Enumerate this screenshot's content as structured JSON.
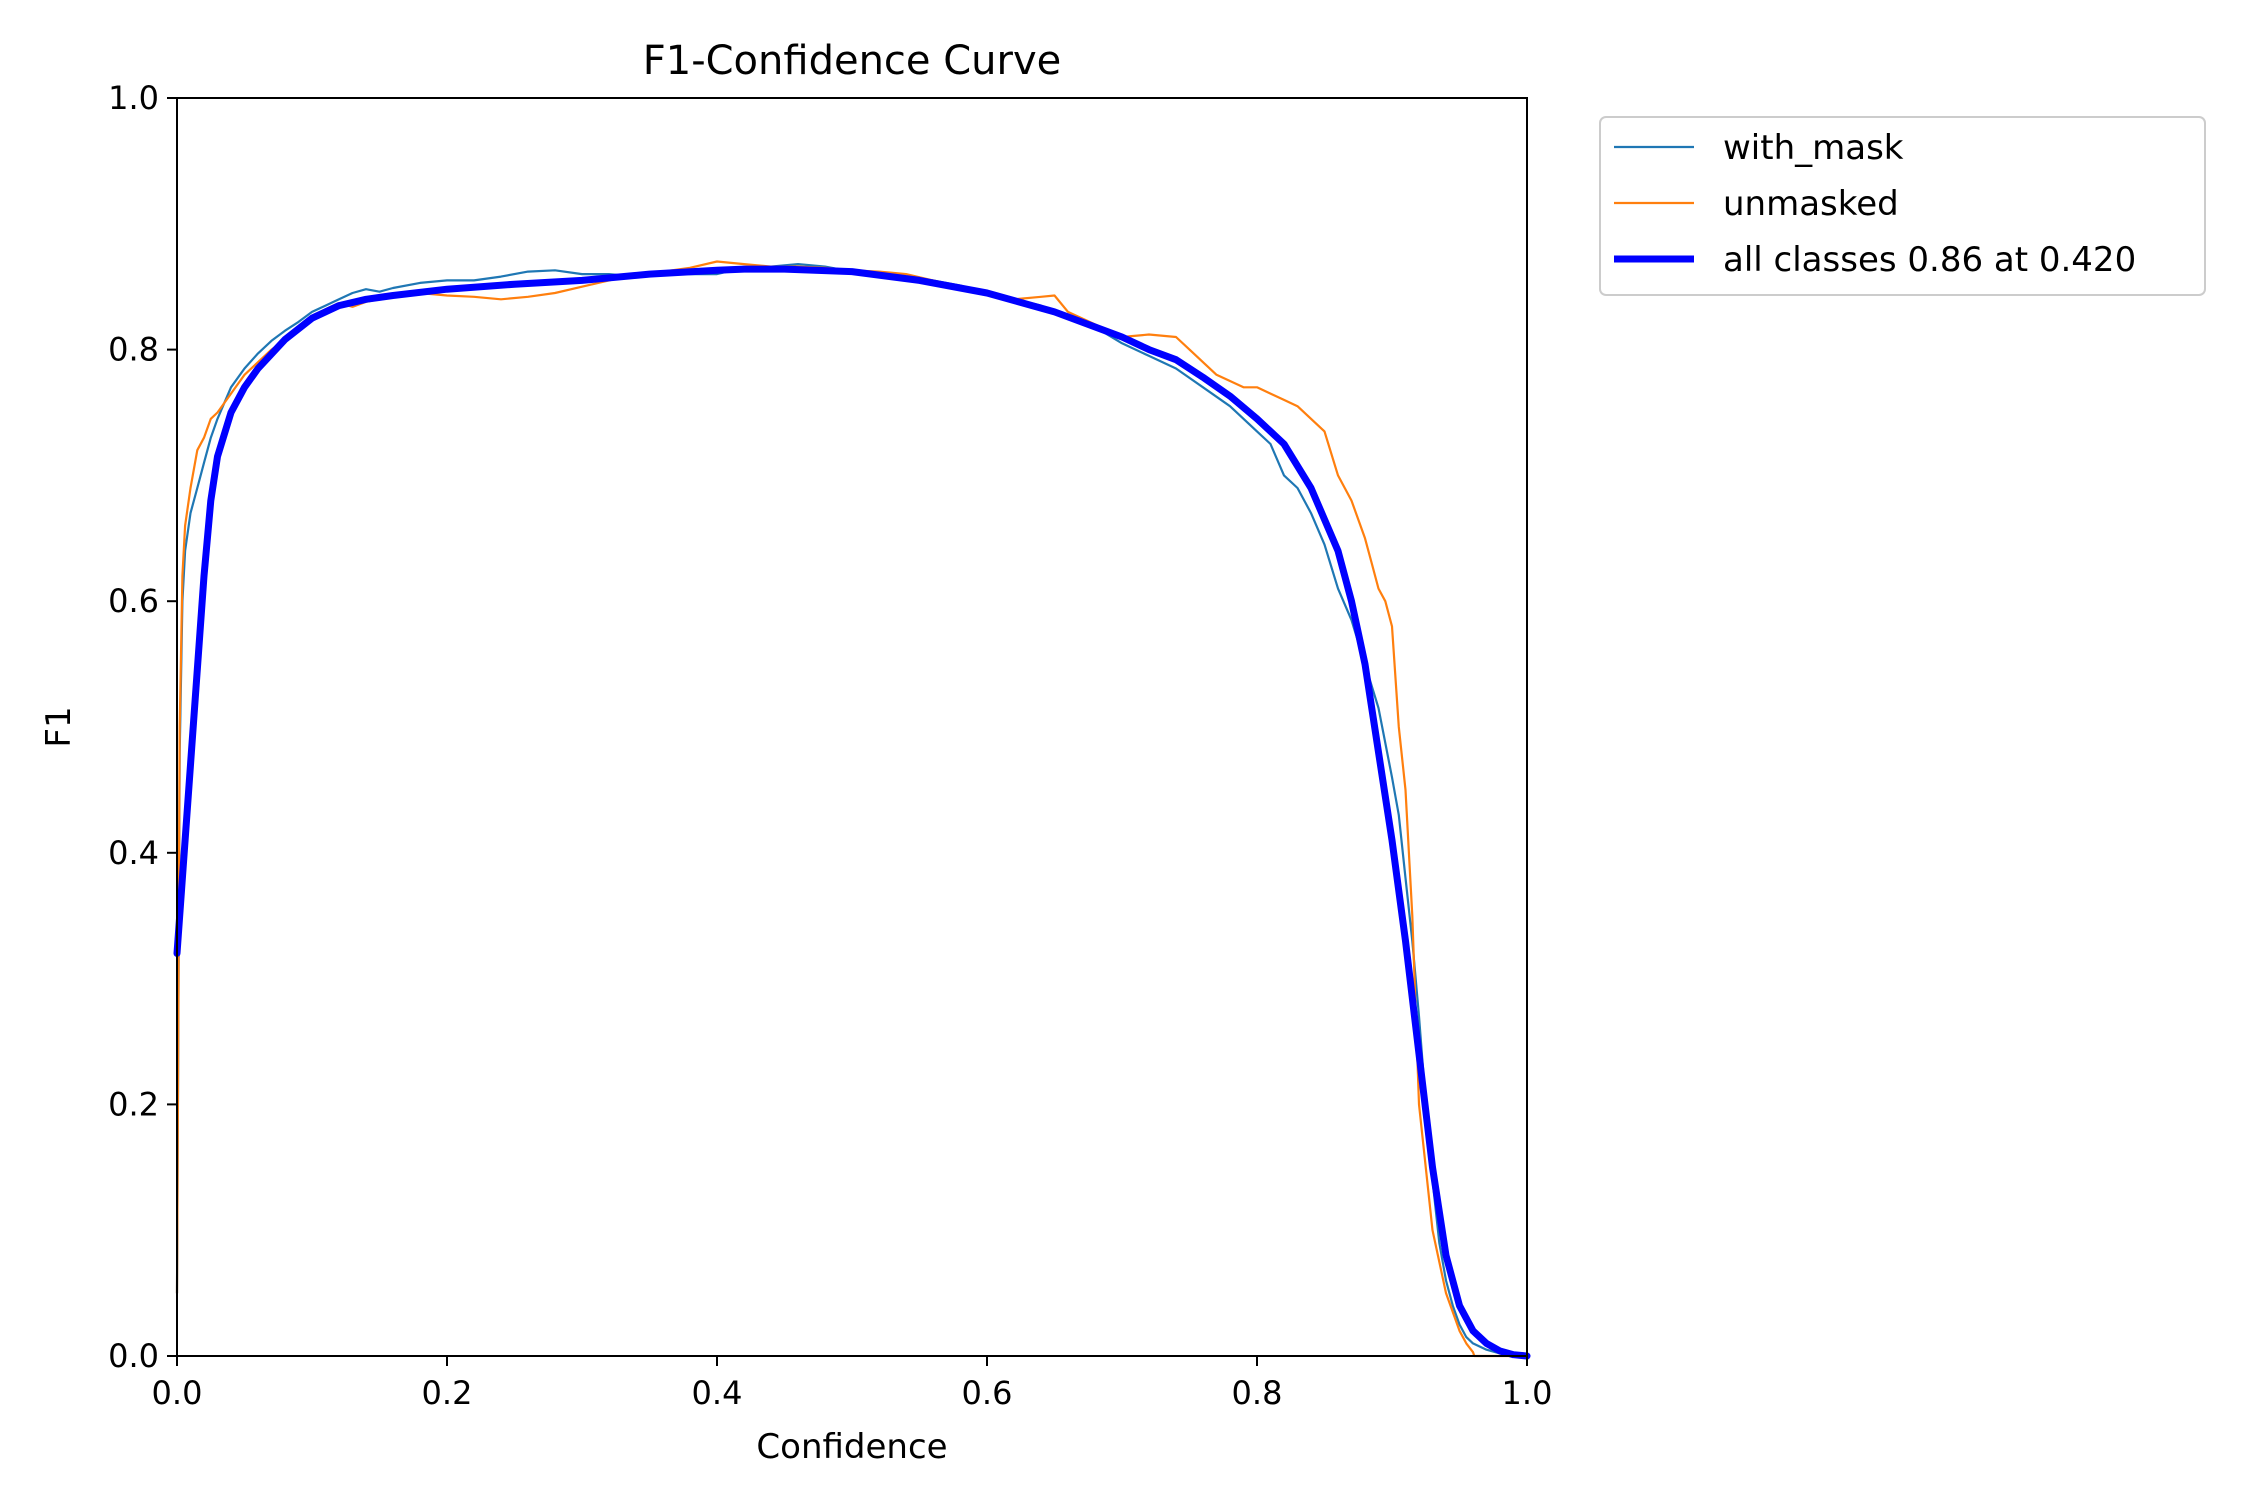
{
  "chart_data": {
    "type": "line",
    "title": "F1-Confidence Curve",
    "xlabel": "Confidence",
    "ylabel": "F1",
    "xlim": [
      0.0,
      1.0
    ],
    "ylim": [
      0.0,
      1.0
    ],
    "xticks": [
      "0.0",
      "0.2",
      "0.4",
      "0.6",
      "0.8",
      "1.0"
    ],
    "yticks": [
      "0.0",
      "0.2",
      "0.4",
      "0.6",
      "0.8",
      "1.0"
    ],
    "grid": false,
    "legend_position": "outside-top-right",
    "series": [
      {
        "name": "with_mask",
        "color": "#1f77b4",
        "style": "thin",
        "x": [
          0.0,
          0.002,
          0.004,
          0.006,
          0.01,
          0.015,
          0.02,
          0.025,
          0.03,
          0.04,
          0.05,
          0.06,
          0.07,
          0.08,
          0.09,
          0.1,
          0.11,
          0.12,
          0.13,
          0.14,
          0.15,
          0.16,
          0.18,
          0.2,
          0.22,
          0.24,
          0.26,
          0.28,
          0.3,
          0.32,
          0.34,
          0.36,
          0.38,
          0.4,
          0.42,
          0.44,
          0.46,
          0.48,
          0.5,
          0.52,
          0.54,
          0.56,
          0.58,
          0.6,
          0.62,
          0.64,
          0.66,
          0.68,
          0.7,
          0.72,
          0.74,
          0.76,
          0.78,
          0.8,
          0.81,
          0.82,
          0.83,
          0.84,
          0.85,
          0.86,
          0.87,
          0.88,
          0.89,
          0.9,
          0.905,
          0.91,
          0.915,
          0.92,
          0.925,
          0.93,
          0.935,
          0.94,
          0.945,
          0.95,
          0.955,
          0.96,
          0.97,
          0.98,
          0.99,
          1.0
        ],
        "y": [
          0.05,
          0.48,
          0.6,
          0.64,
          0.67,
          0.69,
          0.71,
          0.73,
          0.745,
          0.77,
          0.785,
          0.797,
          0.807,
          0.815,
          0.822,
          0.83,
          0.835,
          0.84,
          0.845,
          0.848,
          0.846,
          0.849,
          0.853,
          0.855,
          0.855,
          0.858,
          0.862,
          0.863,
          0.86,
          0.86,
          0.858,
          0.862,
          0.86,
          0.86,
          0.865,
          0.866,
          0.868,
          0.866,
          0.862,
          0.86,
          0.857,
          0.855,
          0.851,
          0.845,
          0.84,
          0.835,
          0.825,
          0.818,
          0.805,
          0.795,
          0.785,
          0.77,
          0.755,
          0.735,
          0.725,
          0.7,
          0.69,
          0.67,
          0.645,
          0.61,
          0.585,
          0.55,
          0.515,
          0.46,
          0.43,
          0.38,
          0.33,
          0.27,
          0.2,
          0.14,
          0.09,
          0.06,
          0.04,
          0.025,
          0.015,
          0.01,
          0.005,
          0.002,
          0.001,
          0.0
        ]
      },
      {
        "name": "unmasked",
        "color": "#ff7f0e",
        "style": "thin",
        "x": [
          0.0,
          0.002,
          0.004,
          0.006,
          0.01,
          0.015,
          0.02,
          0.025,
          0.03,
          0.04,
          0.05,
          0.06,
          0.07,
          0.08,
          0.09,
          0.1,
          0.11,
          0.12,
          0.13,
          0.14,
          0.15,
          0.16,
          0.18,
          0.2,
          0.22,
          0.24,
          0.26,
          0.28,
          0.3,
          0.32,
          0.34,
          0.36,
          0.38,
          0.4,
          0.42,
          0.44,
          0.46,
          0.48,
          0.5,
          0.52,
          0.54,
          0.56,
          0.58,
          0.6,
          0.62,
          0.64,
          0.65,
          0.66,
          0.68,
          0.7,
          0.72,
          0.74,
          0.75,
          0.76,
          0.77,
          0.78,
          0.79,
          0.8,
          0.81,
          0.82,
          0.83,
          0.84,
          0.85,
          0.86,
          0.87,
          0.88,
          0.885,
          0.89,
          0.895,
          0.9,
          0.905,
          0.91,
          0.915,
          0.92,
          0.93,
          0.94,
          0.95,
          0.955,
          0.96,
          0.961,
          0.97,
          1.0
        ],
        "y": [
          0.05,
          0.5,
          0.62,
          0.66,
          0.69,
          0.72,
          0.73,
          0.745,
          0.75,
          0.765,
          0.78,
          0.79,
          0.8,
          0.808,
          0.815,
          0.825,
          0.832,
          0.837,
          0.834,
          0.838,
          0.84,
          0.842,
          0.845,
          0.843,
          0.842,
          0.84,
          0.842,
          0.845,
          0.85,
          0.855,
          0.86,
          0.862,
          0.865,
          0.87,
          0.868,
          0.866,
          0.866,
          0.865,
          0.863,
          0.862,
          0.86,
          0.855,
          0.85,
          0.845,
          0.84,
          0.842,
          0.843,
          0.83,
          0.82,
          0.81,
          0.812,
          0.81,
          0.8,
          0.79,
          0.78,
          0.775,
          0.77,
          0.77,
          0.765,
          0.76,
          0.755,
          0.745,
          0.735,
          0.7,
          0.68,
          0.65,
          0.63,
          0.61,
          0.6,
          0.58,
          0.5,
          0.45,
          0.35,
          0.2,
          0.1,
          0.05,
          0.02,
          0.01,
          0.003,
          0.0,
          0.0,
          0.0
        ]
      },
      {
        "name": "all classes 0.86 at 0.420",
        "color": "#0000ff",
        "style": "thick",
        "x": [
          0.0,
          0.01,
          0.02,
          0.025,
          0.03,
          0.04,
          0.05,
          0.06,
          0.08,
          0.1,
          0.12,
          0.14,
          0.16,
          0.2,
          0.25,
          0.3,
          0.35,
          0.4,
          0.42,
          0.45,
          0.5,
          0.55,
          0.6,
          0.65,
          0.7,
          0.72,
          0.74,
          0.76,
          0.78,
          0.8,
          0.82,
          0.84,
          0.86,
          0.87,
          0.88,
          0.89,
          0.9,
          0.91,
          0.92,
          0.93,
          0.94,
          0.95,
          0.96,
          0.97,
          0.98,
          0.99,
          1.0
        ],
        "y": [
          0.32,
          0.47,
          0.62,
          0.68,
          0.715,
          0.75,
          0.77,
          0.785,
          0.808,
          0.825,
          0.835,
          0.84,
          0.843,
          0.848,
          0.852,
          0.855,
          0.86,
          0.863,
          0.864,
          0.864,
          0.862,
          0.855,
          0.845,
          0.83,
          0.81,
          0.8,
          0.792,
          0.778,
          0.763,
          0.745,
          0.725,
          0.69,
          0.64,
          0.6,
          0.55,
          0.48,
          0.41,
          0.33,
          0.24,
          0.15,
          0.08,
          0.04,
          0.02,
          0.01,
          0.004,
          0.001,
          0.0
        ]
      }
    ]
  }
}
